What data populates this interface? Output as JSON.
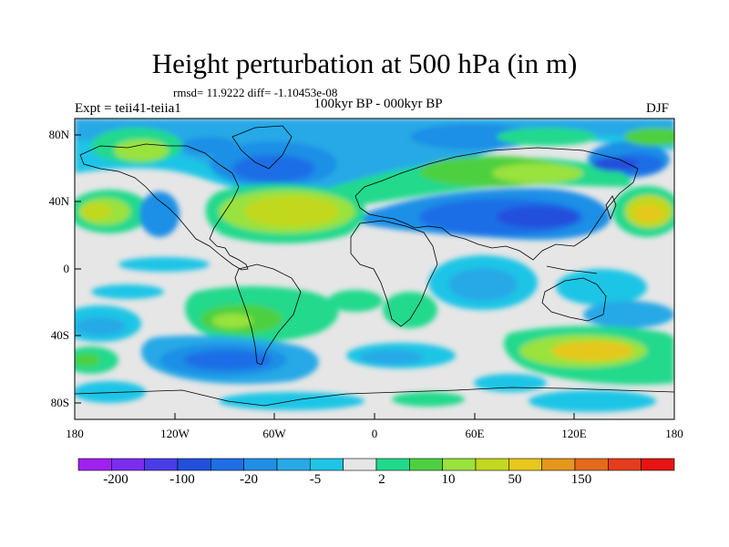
{
  "title": "Height perturbation at 500 hPa (in m)",
  "stats": "rmsd= 11.9222 diff= -1.10453e-08",
  "subtitle": "100kyr BP - 000kyr BP",
  "experiment": "Expt = teii41-teiia1",
  "season": "DJF",
  "map": {
    "projection": "cylindrical-equidistant",
    "lat_range": [
      -90,
      90
    ],
    "lon_range": [
      -180,
      180
    ],
    "lat_ticks": [
      "80N",
      "40N",
      "0",
      "40S",
      "80S"
    ],
    "lon_ticks": [
      "180",
      "120W",
      "60W",
      "0",
      "60E",
      "120E",
      "180"
    ],
    "coastlines": true
  },
  "colorbar": {
    "colors": [
      "#a020f0",
      "#7a2df0",
      "#4a3ce8",
      "#2250dc",
      "#1e6ee6",
      "#1f8fe6",
      "#27a9e6",
      "#1ec5e6",
      "#e6e6e6",
      "#21d98c",
      "#4dd040",
      "#9ae23c",
      "#c2d81e",
      "#e6c81c",
      "#e6961c",
      "#e66a1c",
      "#e43c1c",
      "#e61414"
    ],
    "labels": [
      "-200",
      "-100",
      "-20",
      "-5",
      "2",
      "10",
      "50",
      "150"
    ]
  }
}
